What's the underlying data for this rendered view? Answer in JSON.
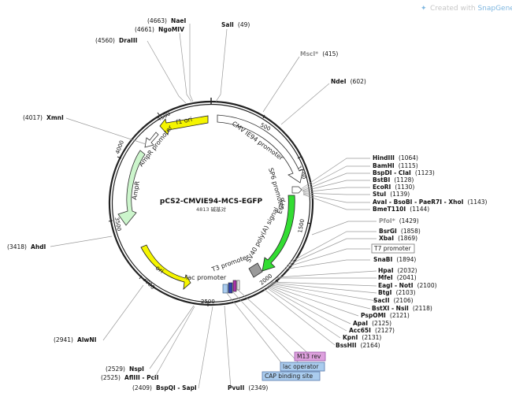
{
  "watermark": {
    "prefix": "Created with ",
    "brand": "SnapGene",
    "mark": "®"
  },
  "plasmid": {
    "name": "pCS2-CMVIE94-MCS-EGFP",
    "length_label": "4813 碱基对"
  },
  "ticks": [
    {
      "label": "500"
    },
    {
      "label": "1000"
    },
    {
      "label": "1500"
    },
    {
      "label": "2000"
    },
    {
      "label": "2500"
    },
    {
      "label": "3000"
    },
    {
      "label": "3500"
    },
    {
      "label": "4000"
    },
    {
      "label": "4500"
    }
  ],
  "features": [
    {
      "label": "f1 ori",
      "color": "#f5f500"
    },
    {
      "label": "AmpR promoter",
      "color": "#ffffff"
    },
    {
      "label": "AmpR",
      "color": "#ccf5cc"
    },
    {
      "label": "ori",
      "color": "#f5f500"
    },
    {
      "label": "lac promoter",
      "color": "#ffffff"
    },
    {
      "label": "T3 promoter",
      "color": "#ffffff"
    },
    {
      "label": "SV40 poly(A) signal",
      "color": "#9a9a9a"
    },
    {
      "label": "EGFP",
      "color": "#33dd33"
    },
    {
      "label": "SP6 promoter",
      "color": "#ffffff"
    },
    {
      "label": "CMV IE94 promoter",
      "color": "#ffffff"
    }
  ],
  "sites_right": [
    {
      "name": "HindIII",
      "pos": "(1064)"
    },
    {
      "name": "BamHI",
      "pos": "(1115)"
    },
    {
      "name": "BspDI - ClaI",
      "pos": "(1123)"
    },
    {
      "name": "BstBI",
      "pos": "(1128)"
    },
    {
      "name": "EcoRI",
      "pos": "(1130)"
    },
    {
      "name": "StuI",
      "pos": "(1139)"
    },
    {
      "name": "AvaI - BsoBI - PaeR7I - XhoI",
      "pos": "(1143)"
    },
    {
      "name": "BmeT110I",
      "pos": "(1144)"
    },
    {
      "name": "PfoI*",
      "pos": "(1429)",
      "gray": true
    },
    {
      "name": "BsrGI",
      "pos": "(1858)"
    },
    {
      "name": "XbaI",
      "pos": "(1869)"
    },
    {
      "name": "SnaBI",
      "pos": "(1894)"
    },
    {
      "name": "HpaI",
      "pos": "(2032)"
    },
    {
      "name": "MfeI",
      "pos": "(2041)"
    },
    {
      "name": "EagI - NotI",
      "pos": "(2100)"
    },
    {
      "name": "BtgI",
      "pos": "(2103)"
    },
    {
      "name": "SacII",
      "pos": "(2106)"
    },
    {
      "name": "BstXI - NsiI",
      "pos": "(2118)"
    },
    {
      "name": "PspOMI",
      "pos": "(2121)"
    },
    {
      "name": "ApaI",
      "pos": "(2125)"
    },
    {
      "name": "Acc65I",
      "pos": "(2127)"
    },
    {
      "name": "KpnI",
      "pos": "(2131)"
    },
    {
      "name": "BssHII",
      "pos": "(2164)"
    }
  ],
  "sites_top": [
    {
      "name": "NaeI",
      "pos": "(4663)"
    },
    {
      "name": "NgoMIV",
      "pos": "(4661)"
    },
    {
      "name": "DraIII",
      "pos": "(4560)"
    },
    {
      "name": "SalI",
      "pos": "(49)"
    },
    {
      "name": "MscI*",
      "pos": "(415)",
      "gray": true
    },
    {
      "name": "NdeI",
      "pos": "(602)"
    }
  ],
  "sites_left": [
    {
      "name": "XmnI",
      "pos": "(4017)"
    },
    {
      "name": "AhdI",
      "pos": "(3418)"
    },
    {
      "name": "AlwNI",
      "pos": "(2941)"
    }
  ],
  "sites_bottom": [
    {
      "name": "NspI",
      "pos": "(2529)"
    },
    {
      "name": "AflIII - PciI",
      "pos": "(2525)"
    },
    {
      "name": "BspQI - SapI",
      "pos": "(2409)"
    },
    {
      "name": "PvuII",
      "pos": "(2349)"
    }
  ],
  "label_boxes": [
    {
      "label": "T7 promoter",
      "color": "#ffffff",
      "border": "#777777"
    },
    {
      "label": "M13 rev",
      "color": "#dda0dd",
      "border": "#9955aa"
    },
    {
      "label": "lac operator",
      "color": "#aaccee",
      "border": "#5577aa"
    },
    {
      "label": "CAP binding site",
      "color": "#aaccee",
      "border": "#5577aa"
    }
  ],
  "colors": {
    "backbone": "#222222",
    "yellow": "#f5f500",
    "green": "#33dd33",
    "pale_green": "#ccf5cc",
    "gray": "#9a9a9a"
  }
}
